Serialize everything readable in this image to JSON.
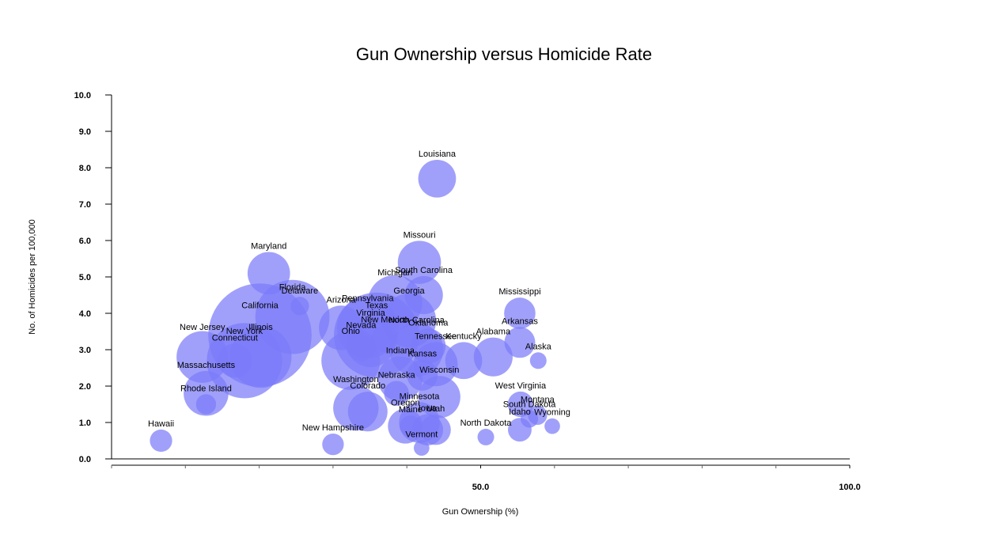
{
  "chart_data": {
    "type": "scatter",
    "title": "Gun Ownership versus Homicide Rate",
    "xlabel": "Gun Ownership (%)",
    "ylabel": "No. of Homicides per 100,000",
    "xlim": [
      0,
      100
    ],
    "ylim": [
      0,
      10
    ],
    "x_tick_labels": [
      {
        "value": 50,
        "label": "50.0"
      },
      {
        "value": 100,
        "label": "100.0"
      }
    ],
    "x_minor_ticks": [
      0,
      10,
      20,
      30,
      40,
      60,
      70,
      80,
      90
    ],
    "y_tick_labels": [
      {
        "value": 0,
        "label": "0.0"
      },
      {
        "value": 1,
        "label": "1.0"
      },
      {
        "value": 2,
        "label": "2.0"
      },
      {
        "value": 3,
        "label": "3.0"
      },
      {
        "value": 4,
        "label": "4.0"
      },
      {
        "value": 5,
        "label": "5.0"
      },
      {
        "value": 6,
        "label": "6.0"
      },
      {
        "value": 7,
        "label": "7.0"
      },
      {
        "value": 8,
        "label": "8.0"
      },
      {
        "value": 9,
        "label": "9.0"
      },
      {
        "value": 10,
        "label": "10.0"
      }
    ],
    "grid": false,
    "bubble_color": "#7b7bfa",
    "points": [
      {
        "label": "Hawaii",
        "x": 6.7,
        "y": 0.5,
        "size": 1.4
      },
      {
        "label": "New Jersey",
        "x": 12.3,
        "y": 2.8,
        "size": 8.8
      },
      {
        "label": "Massachusetts",
        "x": 12.8,
        "y": 1.8,
        "size": 6.5
      },
      {
        "label": "Rhode Island",
        "x": 12.8,
        "y": 1.5,
        "size": 1.1
      },
      {
        "label": "New York",
        "x": 18.0,
        "y": 2.7,
        "size": 19.4
      },
      {
        "label": "Illinois",
        "x": 20.2,
        "y": 2.8,
        "size": 12.8
      },
      {
        "label": "Connecticut",
        "x": 16.7,
        "y": 2.7,
        "size": 3.6
      },
      {
        "label": "California",
        "x": 20.1,
        "y": 3.4,
        "size": 37.3
      },
      {
        "label": "Maryland",
        "x": 21.3,
        "y": 5.1,
        "size": 5.8
      },
      {
        "label": "Florida",
        "x": 24.5,
        "y": 3.9,
        "size": 18.8
      },
      {
        "label": "Delaware",
        "x": 25.5,
        "y": 4.2,
        "size": 0.9
      },
      {
        "label": "Arizona",
        "x": 31.1,
        "y": 3.6,
        "size": 6.4
      },
      {
        "label": "Texas",
        "x": 35.9,
        "y": 3.4,
        "size": 25.1
      },
      {
        "label": "Pennsylvania",
        "x": 34.7,
        "y": 3.6,
        "size": 12.7
      },
      {
        "label": "Virginia",
        "x": 35.1,
        "y": 3.2,
        "size": 8.0
      },
      {
        "label": "Ohio",
        "x": 32.4,
        "y": 2.7,
        "size": 11.5
      },
      {
        "label": "Nevada",
        "x": 33.8,
        "y": 3.1,
        "size": 2.7
      },
      {
        "label": "New Mexico",
        "x": 37.0,
        "y": 3.3,
        "size": 2.1
      },
      {
        "label": "Michigan",
        "x": 38.4,
        "y": 4.3,
        "size": 9.9
      },
      {
        "label": "Georgia",
        "x": 40.3,
        "y": 3.8,
        "size": 9.7
      },
      {
        "label": "North Carolina",
        "x": 41.3,
        "y": 3.0,
        "size": 9.5
      },
      {
        "label": "Oklahoma",
        "x": 42.9,
        "y": 3.1,
        "size": 3.8
      },
      {
        "label": "Missouri",
        "x": 41.7,
        "y": 5.4,
        "size": 6.0
      },
      {
        "label": "South Carolina",
        "x": 42.3,
        "y": 4.5,
        "size": 4.6
      },
      {
        "label": "Louisiana",
        "x": 44.1,
        "y": 7.7,
        "size": 4.5
      },
      {
        "label": "Tennessee",
        "x": 43.9,
        "y": 2.6,
        "size": 6.3
      },
      {
        "label": "Indiana",
        "x": 39.1,
        "y": 2.2,
        "size": 6.5
      },
      {
        "label": "Kansas",
        "x": 42.1,
        "y": 2.3,
        "size": 2.9
      },
      {
        "label": "Nebraska",
        "x": 38.6,
        "y": 1.8,
        "size": 1.8
      },
      {
        "label": "Wisconsin",
        "x": 44.4,
        "y": 1.7,
        "size": 5.7
      },
      {
        "label": "Kentucky",
        "x": 47.7,
        "y": 2.7,
        "size": 4.3
      },
      {
        "label": "Alabama",
        "x": 51.7,
        "y": 2.8,
        "size": 4.8
      },
      {
        "label": "Washington",
        "x": 33.1,
        "y": 1.4,
        "size": 6.7
      },
      {
        "label": "Colorado",
        "x": 34.7,
        "y": 1.3,
        "size": 5.0
      },
      {
        "label": "Minnesota",
        "x": 41.7,
        "y": 1.0,
        "size": 5.3
      },
      {
        "label": "Oregon",
        "x": 39.8,
        "y": 0.9,
        "size": 3.8
      },
      {
        "label": "Iowa",
        "x": 42.8,
        "y": 0.8,
        "size": 3.0
      },
      {
        "label": "Utah",
        "x": 43.9,
        "y": 0.8,
        "size": 2.8
      },
      {
        "label": "Maine",
        "x": 40.5,
        "y": 0.9,
        "size": 1.3
      },
      {
        "label": "New Hampshire",
        "x": 30.0,
        "y": 0.4,
        "size": 1.3
      },
      {
        "label": "Vermont",
        "x": 42.0,
        "y": 0.3,
        "size": 0.6
      },
      {
        "label": "Mississippi",
        "x": 55.3,
        "y": 4.0,
        "size": 3.0
      },
      {
        "label": "Arkansas",
        "x": 55.3,
        "y": 3.2,
        "size": 2.9
      },
      {
        "label": "Alaska",
        "x": 57.8,
        "y": 2.7,
        "size": 0.7
      },
      {
        "label": "West Virginia",
        "x": 55.4,
        "y": 1.5,
        "size": 1.9
      },
      {
        "label": "Montana",
        "x": 57.7,
        "y": 1.2,
        "size": 1.0
      },
      {
        "label": "South Dakota",
        "x": 56.6,
        "y": 1.1,
        "size": 0.8
      },
      {
        "label": "Wyoming",
        "x": 59.7,
        "y": 0.9,
        "size": 0.6
      },
      {
        "label": "Idaho",
        "x": 55.3,
        "y": 0.8,
        "size": 1.6
      },
      {
        "label": "North Dakota",
        "x": 50.7,
        "y": 0.6,
        "size": 0.7
      }
    ]
  }
}
